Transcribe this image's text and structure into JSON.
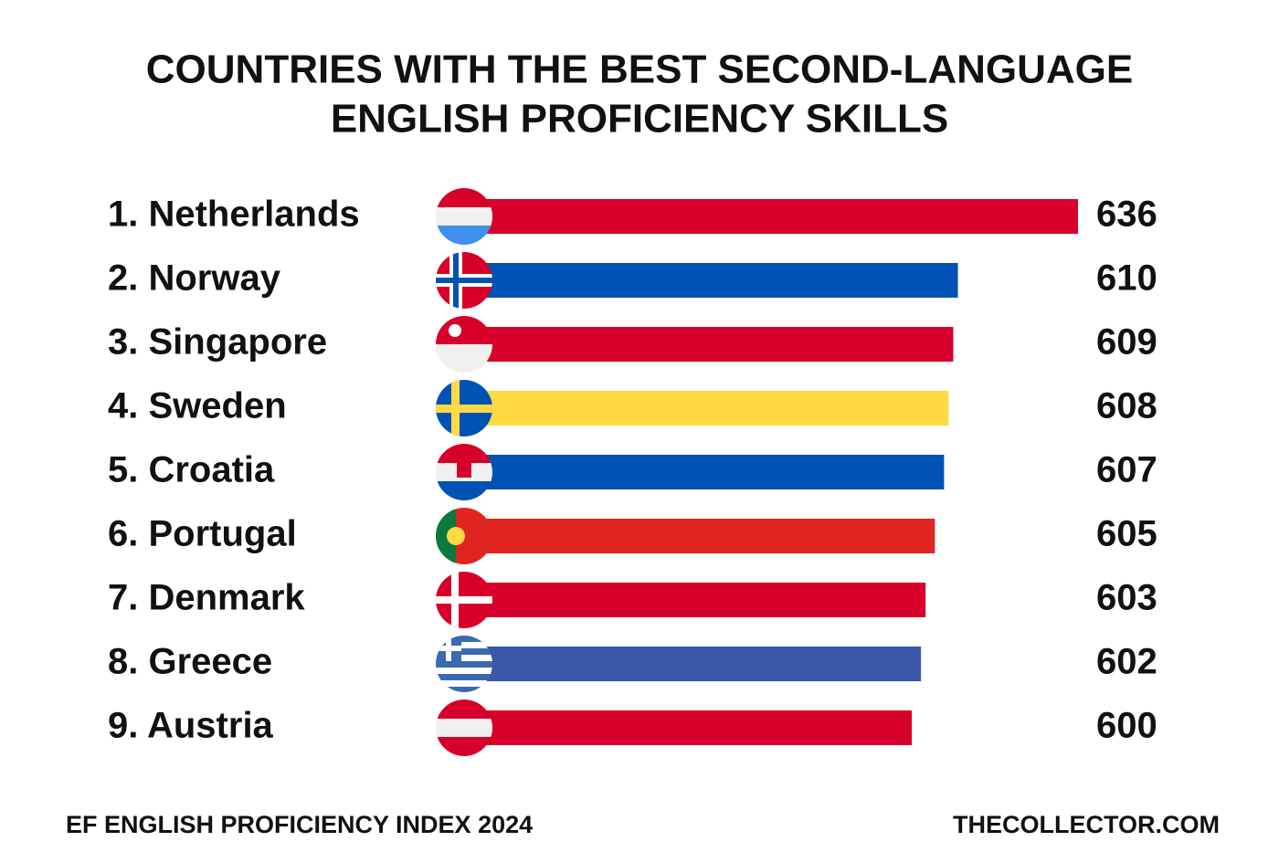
{
  "chart_data": {
    "type": "bar",
    "orientation": "horizontal",
    "title": "COUNTRIES WITH THE BEST SECOND-LANGUAGE",
    "subtitle": "ENGLISH PROFICIENCY SKILLS",
    "categories": [
      "1. Netherlands",
      "2. Norway",
      "3. Singapore",
      "4. Sweden",
      "5. Croatia",
      "6. Portugal",
      "7. Denmark",
      "8. Greece",
      "9. Austria"
    ],
    "values": [
      636,
      610,
      609,
      608,
      607,
      605,
      603,
      602,
      600
    ],
    "colors": [
      "#d7002a",
      "#0052b4",
      "#d7002a",
      "#ffda44",
      "#0052b4",
      "#e0241f",
      "#d7002a",
      "#3b57a8",
      "#d7002a"
    ],
    "source": "EF ENGLISH PROFICIENCY INDEX 2024",
    "credit": "THECOLLECTOR.COM"
  }
}
